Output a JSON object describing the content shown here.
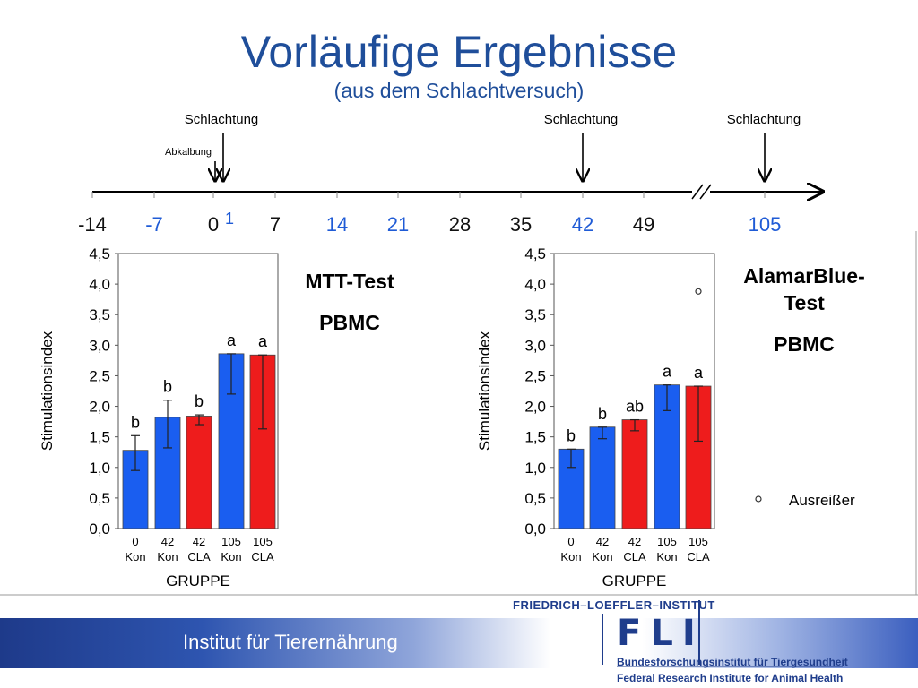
{
  "slide": {
    "title": "Vorläufige Ergebnisse",
    "subtitle": "(aus dem Schlachtversuch)"
  },
  "timeline": {
    "ticks": [
      {
        "label": "-14",
        "color": "#111111"
      },
      {
        "label": "-7",
        "color": "#1f5bd6"
      },
      {
        "label": "0",
        "color": "#111111"
      },
      {
        "label": "1",
        "color": "#1f5bd6"
      },
      {
        "label": "7",
        "color": "#111111"
      },
      {
        "label": "14",
        "color": "#1f5bd6"
      },
      {
        "label": "21",
        "color": "#1f5bd6"
      },
      {
        "label": "28",
        "color": "#111111"
      },
      {
        "label": "35",
        "color": "#111111"
      },
      {
        "label": "42",
        "color": "#1f5bd6"
      },
      {
        "label": "49",
        "color": "#111111"
      },
      {
        "label": "105",
        "color": "#1f5bd6"
      }
    ],
    "events": [
      {
        "label": "Schlachtung",
        "day": "1"
      },
      {
        "label": "Abkalbung",
        "day": "0"
      },
      {
        "label": "Schlachtung",
        "day": "42"
      },
      {
        "label": "Schlachtung",
        "day": "105"
      }
    ]
  },
  "chart_data": [
    {
      "type": "bar",
      "title": "MTT-Test",
      "subtitle": "PBMC",
      "ylabel": "Stimulationsindex",
      "xlabel": "GRUPPE",
      "ylim": [
        0,
        4.5
      ],
      "yticks": [
        "0,0",
        "0,5",
        "1,0",
        "1,5",
        "2,0",
        "2,5",
        "3,0",
        "3,5",
        "4,0",
        "4,5"
      ],
      "categories": [
        {
          "line1": "0",
          "line2": "Kon"
        },
        {
          "line1": "42",
          "line2": "Kon"
        },
        {
          "line1": "42",
          "line2": "CLA"
        },
        {
          "line1": "105",
          "line2": "Kon"
        },
        {
          "line1": "105",
          "line2": "CLA"
        }
      ],
      "values": [
        1.28,
        1.82,
        1.84,
        2.86,
        2.84
      ],
      "error_low": [
        0.95,
        1.32,
        1.7,
        2.2,
        1.63
      ],
      "error_high": [
        1.52,
        2.1,
        1.86,
        2.86,
        2.84
      ],
      "letters": [
        "b",
        "b",
        "b",
        "a",
        "a"
      ],
      "colors": [
        "#1a5ef0",
        "#1a5ef0",
        "#ee1c1c",
        "#1a5ef0",
        "#ee1c1c"
      ],
      "outliers": []
    },
    {
      "type": "bar",
      "title": "AlamarBlue-Test",
      "subtitle": "PBMC",
      "ylabel": "Stimulationsindex",
      "xlabel": "GRUPPE",
      "ylim": [
        0,
        4.5
      ],
      "yticks": [
        "0,0",
        "0,5",
        "1,0",
        "1,5",
        "2,0",
        "2,5",
        "3,0",
        "3,5",
        "4,0",
        "4,5"
      ],
      "categories": [
        {
          "line1": "0",
          "line2": "Kon"
        },
        {
          "line1": "42",
          "line2": "Kon"
        },
        {
          "line1": "42",
          "line2": "CLA"
        },
        {
          "line1": "105",
          "line2": "Kon"
        },
        {
          "line1": "105",
          "line2": "CLA"
        }
      ],
      "values": [
        1.3,
        1.66,
        1.78,
        2.35,
        2.33
      ],
      "error_low": [
        1.0,
        1.47,
        1.6,
        1.93,
        1.43
      ],
      "error_high": [
        1.3,
        1.66,
        1.78,
        2.35,
        2.33
      ],
      "letters": [
        "b",
        "b",
        "ab",
        "a",
        "a"
      ],
      "colors": [
        "#1a5ef0",
        "#1a5ef0",
        "#ee1c1c",
        "#1a5ef0",
        "#ee1c1c"
      ],
      "outliers": [
        {
          "category": 4,
          "value": 3.88
        }
      ],
      "legend": "Ausreißer"
    }
  ],
  "footer": {
    "institute": "Institut für Tierernährung",
    "fli_name": "FRIEDRICH–LOEFFLER–INSTITUT",
    "fli_logo": "FLI",
    "fli_de": "Bundesforschungsinstitut für Tiergesundheit",
    "fli_en": "Federal Research Institute for Animal Health"
  }
}
